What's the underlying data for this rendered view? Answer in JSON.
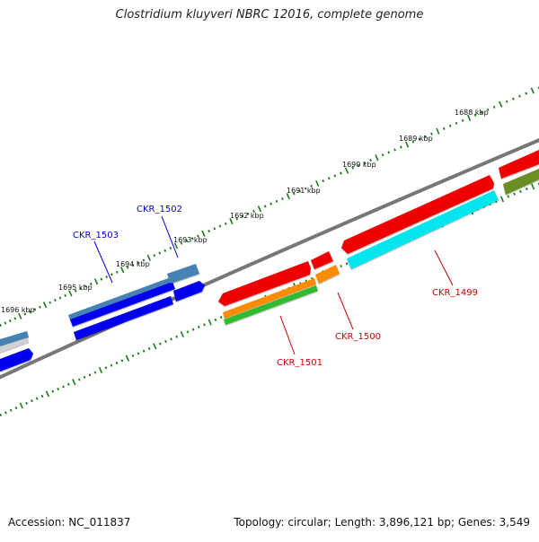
{
  "title": "Clostridium kluyveri NBRC 12016, complete genome",
  "footer": {
    "accession": "Accession: NC_011837",
    "summary": "Topology: circular; Length: 3,896,121 bp; Genes: 3,549"
  },
  "ticks": [
    "1688 kbp",
    "1689 kbp",
    "1690 kbp",
    "1691 kbp",
    "1692 kbp",
    "1693 kbp",
    "1694 kbp",
    "1695 kbp",
    "1696 kbp"
  ],
  "gene_labels": {
    "ckr_1503": "CKR_1503",
    "ckr_1502": "CKR_1502",
    "ckr_1501": "CKR_1501",
    "ckr_1500": "CKR_1500",
    "ckr_1499": "CKR_1499"
  },
  "colors": {
    "forward_label": "#0000cc",
    "reverse_label": "#cc0000",
    "backbone": "#777777",
    "tick": "#1a7a1a",
    "gene_blue": "#0000ee",
    "gene_steelblue": "#4682b4",
    "gene_red": "#ee0000",
    "gene_orange": "#ff8c00",
    "gene_green": "#33bb33",
    "gene_cyan": "#00e5ee",
    "gene_olive": "#6b8e23"
  }
}
